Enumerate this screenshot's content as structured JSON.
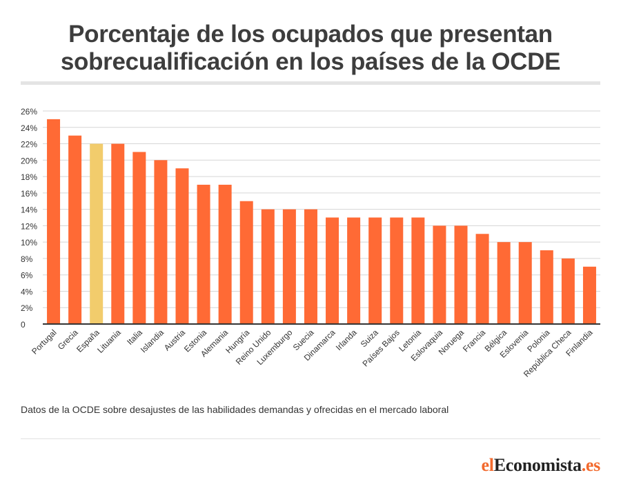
{
  "header": {
    "title_line1": "Porcentaje de los ocupados que presentan",
    "title_line2": "sobrecualificación en los países de la OCDE"
  },
  "footer": {
    "note": "Datos de la OCDE sobre desajustes de las habilidades demandas y ofrecidas en el mercado laboral",
    "logo": {
      "prefix": "el",
      "brand": "Economista",
      "suffix": ".es"
    }
  },
  "colors": {
    "bar": "#ff6a35",
    "highlight": "#f2cc6c",
    "grid": "#d5d5d5",
    "axis": "#333333",
    "text": "#333333"
  },
  "chart_data": {
    "type": "bar",
    "categories": [
      "Portugal",
      "Grecia",
      "España",
      "Lituania",
      "Italia",
      "Islandia",
      "Austria",
      "Estonia",
      "Alemania",
      "Hungría",
      "Reino Unido",
      "Luxemburgo",
      "Suecia",
      "Dinamarca",
      "Irlanda",
      "Suiza",
      "Países Bajos",
      "Letonia",
      "Eslovaquia",
      "Noruega",
      "Francia",
      "Bélgica",
      "Eslovenia",
      "Polonia",
      "República Checa",
      "Finlandia"
    ],
    "values": [
      25,
      23,
      22,
      22,
      21,
      20,
      19,
      17,
      17,
      15,
      14,
      14,
      14,
      13,
      13,
      13,
      13,
      13,
      12,
      12,
      11,
      10,
      10,
      9,
      8,
      7
    ],
    "highlight_category": "España",
    "ylim": [
      0,
      26
    ],
    "yticks": [
      0,
      2,
      4,
      6,
      8,
      10,
      12,
      14,
      16,
      18,
      20,
      22,
      24,
      26
    ],
    "ytick_labels": [
      "0",
      "2%",
      "4%",
      "6%",
      "8%",
      "10%",
      "12%",
      "14%",
      "16%",
      "18%",
      "20%",
      "22%",
      "24%",
      "26%"
    ],
    "grid": true,
    "title": "Porcentaje de los ocupados que presentan sobrecualificación en los países de la OCDE"
  }
}
